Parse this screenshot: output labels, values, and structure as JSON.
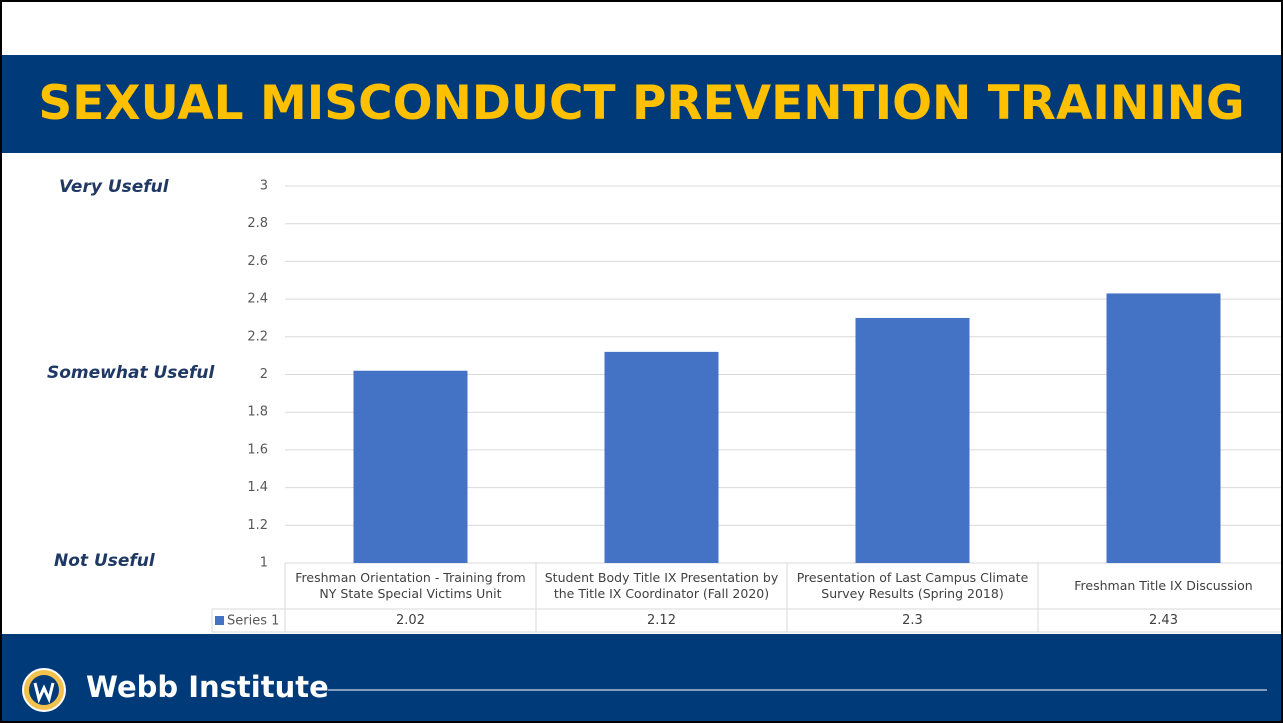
{
  "title": "SEXUAL MISCONDUCT PREVENTION TRAINING",
  "chart_data": {
    "type": "bar",
    "annotations": [
      "Very Useful",
      "Somewhat Useful",
      "Not Useful"
    ],
    "categories": [
      "Freshman Orientation - Training from NY State Special Victims Unit",
      "Student Body Title IX Presentation by the Title IX Coordinator (Fall 2020)",
      "Presentation of Last Campus Climate Survey Results (Spring  2018)",
      "Freshman Title IX Discussion"
    ],
    "series": [
      {
        "name": "Series 1",
        "color": "#4472c4",
        "values": [
          2.02,
          2.12,
          2.3,
          2.43
        ]
      }
    ],
    "ylim": [
      1,
      3
    ],
    "yticks": [
      1,
      1.2,
      1.4,
      1.6,
      1.8,
      2,
      2.2,
      2.4,
      2.6,
      2.8,
      3
    ],
    "grid": true
  },
  "footer": {
    "organization": "Webb Institute"
  }
}
